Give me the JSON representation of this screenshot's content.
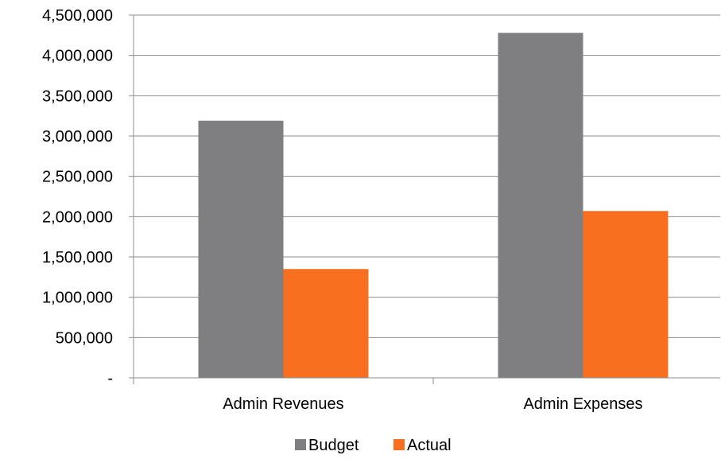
{
  "chart_data": {
    "type": "bar",
    "categories": [
      "Admin Revenues",
      "Admin Expenses"
    ],
    "series": [
      {
        "name": "Budget",
        "values": [
          3190000,
          4280000
        ],
        "color": "#7f7f82"
      },
      {
        "name": "Actual",
        "values": [
          1350000,
          2070000
        ],
        "color": "#f8701f"
      }
    ],
    "ylim": [
      0,
      4500000
    ],
    "yticks": [
      0,
      500000,
      1000000,
      1500000,
      2000000,
      2500000,
      3000000,
      3500000,
      4000000,
      4500000
    ],
    "ytick_labels": [
      "-",
      "500,000",
      "1,000,000",
      "1,500,000",
      "2,000,000",
      "2,500,000",
      "3,000,000",
      "3,500,000",
      "4,000,000",
      "4,500,000"
    ],
    "grid": true,
    "legend_position": "bottom"
  }
}
